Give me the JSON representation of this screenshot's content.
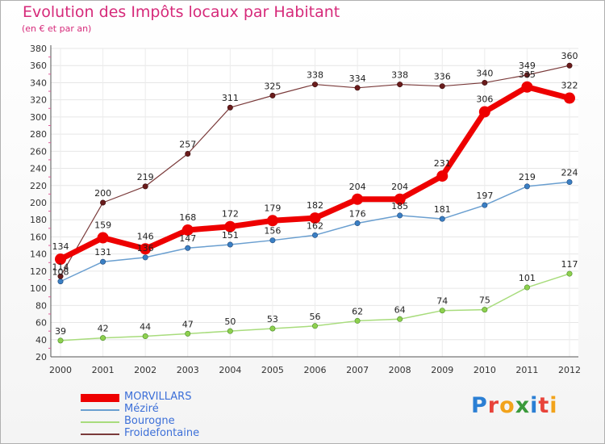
{
  "chart_data": {
    "type": "line",
    "title": "Evolution des Impôts locaux par Habitant",
    "subtitle": "(en € et par an)",
    "xlabel": "",
    "ylabel": "",
    "ylim": [
      20,
      380
    ],
    "yticks": [
      20,
      40,
      60,
      80,
      100,
      120,
      140,
      160,
      180,
      200,
      220,
      240,
      260,
      280,
      300,
      320,
      340,
      360,
      380
    ],
    "x": [
      "2000",
      "2001",
      "2002",
      "2003",
      "2004",
      "2005",
      "2006",
      "2007",
      "2008",
      "2009",
      "2010",
      "2011",
      "2012"
    ],
    "grid": true,
    "legend_position": "bottom-left",
    "series": [
      {
        "name": "MORVILLARS",
        "color": "#ee0000",
        "values": [
          134,
          159,
          146,
          168,
          172,
          179,
          182,
          204,
          204,
          231,
          306,
          335,
          322
        ],
        "value_labels": [
          "134",
          "159",
          "146",
          "168",
          "172",
          "179",
          "182",
          "204",
          "204",
          "231",
          "306",
          "335",
          "322"
        ]
      },
      {
        "name": "Méziré",
        "color": "#6a9fd0",
        "values": [
          108,
          131,
          136,
          147,
          151,
          156,
          162,
          176,
          185,
          181,
          197,
          219,
          224
        ],
        "value_labels": [
          "108",
          "131",
          "136",
          "147",
          "151",
          "156",
          "162",
          "176",
          "185",
          "181",
          "197",
          "219",
          "224"
        ]
      },
      {
        "name": "Bourogne",
        "color": "#a8dc7c",
        "values": [
          39,
          42,
          44,
          47,
          50,
          53,
          56,
          62,
          64,
          74,
          75,
          101,
          117
        ],
        "value_labels": [
          "39",
          "42",
          "44",
          "47",
          "50",
          "53",
          "56",
          "62",
          "64",
          "74",
          "75",
          "101",
          "117"
        ]
      },
      {
        "name": "Froidefontaine",
        "color": "#7a3a3a",
        "values": [
          114,
          200,
          219,
          257,
          311,
          325,
          338,
          334,
          338,
          336,
          340,
          349,
          360
        ],
        "value_labels": [
          "114",
          "200",
          "219",
          "257",
          "311",
          "325",
          "338",
          "334",
          "338",
          "336",
          "340",
          "349",
          "360"
        ]
      }
    ]
  },
  "brand": {
    "text": "Proxiti",
    "letter_colors": [
      "#2b7fd4",
      "#e8433a",
      "#f2a31b",
      "#3a9a3a",
      "#2b7fd4",
      "#e8433a",
      "#f2a31b"
    ]
  }
}
